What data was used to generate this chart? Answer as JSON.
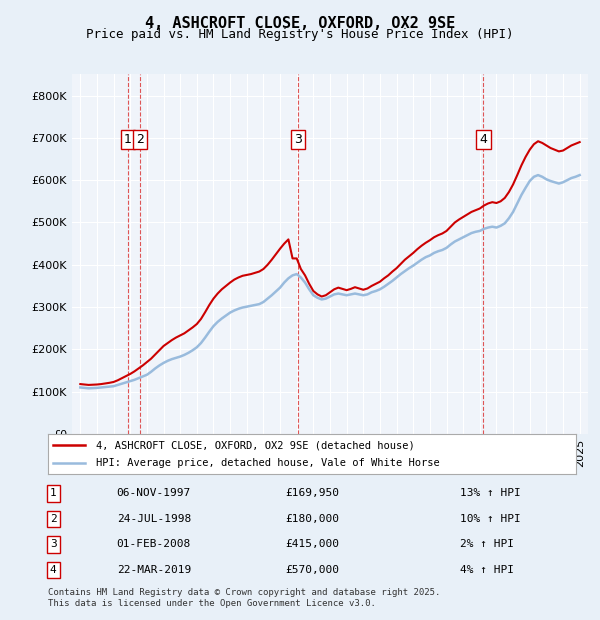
{
  "title": "4, ASHCROFT CLOSE, OXFORD, OX2 9SE",
  "subtitle": "Price paid vs. HM Land Registry's House Price Index (HPI)",
  "legend_line1": "4, ASHCROFT CLOSE, OXFORD, OX2 9SE (detached house)",
  "legend_line2": "HPI: Average price, detached house, Vale of White Horse",
  "footnote": "Contains HM Land Registry data © Crown copyright and database right 2025.\nThis data is licensed under the Open Government Licence v3.0.",
  "transactions": [
    {
      "num": 1,
      "date": "06-NOV-1997",
      "price": "£169,950",
      "hpi": "13% ↑ HPI",
      "x_year": 1997.85
    },
    {
      "num": 2,
      "date": "24-JUL-1998",
      "price": "£180,000",
      "hpi": "10% ↑ HPI",
      "x_year": 1998.56
    },
    {
      "num": 3,
      "date": "01-FEB-2008",
      "price": "£415,000",
      "hpi": "2% ↑ HPI",
      "x_year": 2008.08
    },
    {
      "num": 4,
      "date": "22-MAR-2019",
      "price": "£570,000",
      "hpi": "4% ↑ HPI",
      "x_year": 2019.22
    }
  ],
  "hpi_x": [
    1995.0,
    1995.25,
    1995.5,
    1995.75,
    1996.0,
    1996.25,
    1996.5,
    1996.75,
    1997.0,
    1997.25,
    1997.5,
    1997.75,
    1998.0,
    1998.25,
    1998.5,
    1998.75,
    1999.0,
    1999.25,
    1999.5,
    1999.75,
    2000.0,
    2000.25,
    2000.5,
    2000.75,
    2001.0,
    2001.25,
    2001.5,
    2001.75,
    2002.0,
    2002.25,
    2002.5,
    2002.75,
    2003.0,
    2003.25,
    2003.5,
    2003.75,
    2004.0,
    2004.25,
    2004.5,
    2004.75,
    2005.0,
    2005.25,
    2005.5,
    2005.75,
    2006.0,
    2006.25,
    2006.5,
    2006.75,
    2007.0,
    2007.25,
    2007.5,
    2007.75,
    2008.0,
    2008.25,
    2008.5,
    2008.75,
    2009.0,
    2009.25,
    2009.5,
    2009.75,
    2010.0,
    2010.25,
    2010.5,
    2010.75,
    2011.0,
    2011.25,
    2011.5,
    2011.75,
    2012.0,
    2012.25,
    2012.5,
    2012.75,
    2013.0,
    2013.25,
    2013.5,
    2013.75,
    2014.0,
    2014.25,
    2014.5,
    2014.75,
    2015.0,
    2015.25,
    2015.5,
    2015.75,
    2016.0,
    2016.25,
    2016.5,
    2016.75,
    2017.0,
    2017.25,
    2017.5,
    2017.75,
    2018.0,
    2018.25,
    2018.5,
    2018.75,
    2019.0,
    2019.25,
    2019.5,
    2019.75,
    2020.0,
    2020.25,
    2020.5,
    2020.75,
    2021.0,
    2021.25,
    2021.5,
    2021.75,
    2022.0,
    2022.25,
    2022.5,
    2022.75,
    2023.0,
    2023.25,
    2023.5,
    2023.75,
    2024.0,
    2024.25,
    2024.5,
    2024.75,
    2025.0
  ],
  "hpi_y": [
    110000,
    109000,
    108000,
    108500,
    109000,
    110000,
    111000,
    112000,
    113000,
    116000,
    119000,
    122000,
    125000,
    128000,
    132000,
    136000,
    140000,
    147000,
    155000,
    162000,
    168000,
    173000,
    177000,
    180000,
    183000,
    187000,
    192000,
    198000,
    205000,
    215000,
    228000,
    242000,
    255000,
    265000,
    273000,
    280000,
    287000,
    292000,
    296000,
    299000,
    301000,
    303000,
    305000,
    307000,
    312000,
    320000,
    328000,
    337000,
    346000,
    358000,
    368000,
    375000,
    378000,
    370000,
    358000,
    342000,
    328000,
    322000,
    318000,
    320000,
    325000,
    330000,
    332000,
    330000,
    328000,
    330000,
    332000,
    330000,
    328000,
    330000,
    335000,
    338000,
    342000,
    348000,
    355000,
    362000,
    370000,
    378000,
    385000,
    392000,
    398000,
    405000,
    412000,
    418000,
    422000,
    428000,
    432000,
    435000,
    440000,
    448000,
    455000,
    460000,
    465000,
    470000,
    475000,
    478000,
    480000,
    485000,
    488000,
    490000,
    488000,
    492000,
    498000,
    510000,
    525000,
    545000,
    565000,
    582000,
    598000,
    608000,
    612000,
    608000,
    602000,
    598000,
    595000,
    592000,
    595000,
    600000,
    605000,
    608000,
    612000
  ],
  "price_x": [
    1995.0,
    1995.25,
    1995.5,
    1995.75,
    1996.0,
    1996.25,
    1996.5,
    1996.75,
    1997.0,
    1997.25,
    1997.5,
    1997.75,
    1998.0,
    1998.25,
    1998.5,
    1998.75,
    1999.0,
    1999.25,
    1999.5,
    1999.75,
    2000.0,
    2000.25,
    2000.5,
    2000.75,
    2001.0,
    2001.25,
    2001.5,
    2001.75,
    2002.0,
    2002.25,
    2002.5,
    2002.75,
    2003.0,
    2003.25,
    2003.5,
    2003.75,
    2004.0,
    2004.25,
    2004.5,
    2004.75,
    2005.0,
    2005.25,
    2005.5,
    2005.75,
    2006.0,
    2006.25,
    2006.5,
    2006.75,
    2007.0,
    2007.25,
    2007.5,
    2007.75,
    2008.0,
    2008.25,
    2008.5,
    2008.75,
    2009.0,
    2009.25,
    2009.5,
    2009.75,
    2010.0,
    2010.25,
    2010.5,
    2010.75,
    2011.0,
    2011.25,
    2011.5,
    2011.75,
    2012.0,
    2012.25,
    2012.5,
    2012.75,
    2013.0,
    2013.25,
    2013.5,
    2013.75,
    2014.0,
    2014.25,
    2014.5,
    2014.75,
    2015.0,
    2015.25,
    2015.5,
    2015.75,
    2016.0,
    2016.25,
    2016.5,
    2016.75,
    2017.0,
    2017.25,
    2017.5,
    2017.75,
    2018.0,
    2018.25,
    2018.5,
    2018.75,
    2019.0,
    2019.25,
    2019.5,
    2019.75,
    2020.0,
    2020.25,
    2020.5,
    2020.75,
    2021.0,
    2021.25,
    2021.5,
    2021.75,
    2022.0,
    2022.25,
    2022.5,
    2022.75,
    2023.0,
    2023.25,
    2023.5,
    2023.75,
    2024.0,
    2024.25,
    2024.5,
    2024.75,
    2025.0
  ],
  "price_y": [
    118000,
    117000,
    116000,
    116500,
    117000,
    118000,
    119500,
    121000,
    123000,
    127000,
    132000,
    137000,
    142000,
    148000,
    155000,
    162000,
    170000,
    178000,
    188000,
    198000,
    208000,
    215000,
    222000,
    228000,
    233000,
    238000,
    245000,
    252000,
    260000,
    272000,
    288000,
    305000,
    320000,
    332000,
    342000,
    350000,
    358000,
    365000,
    370000,
    374000,
    376000,
    378000,
    381000,
    384000,
    390000,
    400000,
    412000,
    425000,
    438000,
    450000,
    460000,
    415000,
    415000,
    390000,
    375000,
    355000,
    338000,
    330000,
    325000,
    328000,
    335000,
    342000,
    346000,
    343000,
    340000,
    343000,
    347000,
    344000,
    341000,
    344000,
    350000,
    355000,
    360000,
    368000,
    375000,
    384000,
    392000,
    402000,
    412000,
    420000,
    428000,
    437000,
    445000,
    452000,
    458000,
    465000,
    470000,
    474000,
    480000,
    490000,
    500000,
    507000,
    513000,
    519000,
    525000,
    529000,
    533000,
    540000,
    545000,
    548000,
    546000,
    550000,
    558000,
    572000,
    590000,
    612000,
    635000,
    655000,
    672000,
    685000,
    692000,
    688000,
    682000,
    676000,
    672000,
    668000,
    670000,
    676000,
    682000,
    686000,
    690000
  ],
  "ylim": [
    0,
    850000
  ],
  "xlim": [
    1994.5,
    2025.5
  ],
  "bg_color": "#e8f0f8",
  "plot_bg": "#f0f4fa",
  "red_color": "#cc0000",
  "blue_color": "#99bbdd",
  "grid_color": "#ffffff",
  "marker_color": "#cc0000",
  "dashed_color": "#dd4444"
}
